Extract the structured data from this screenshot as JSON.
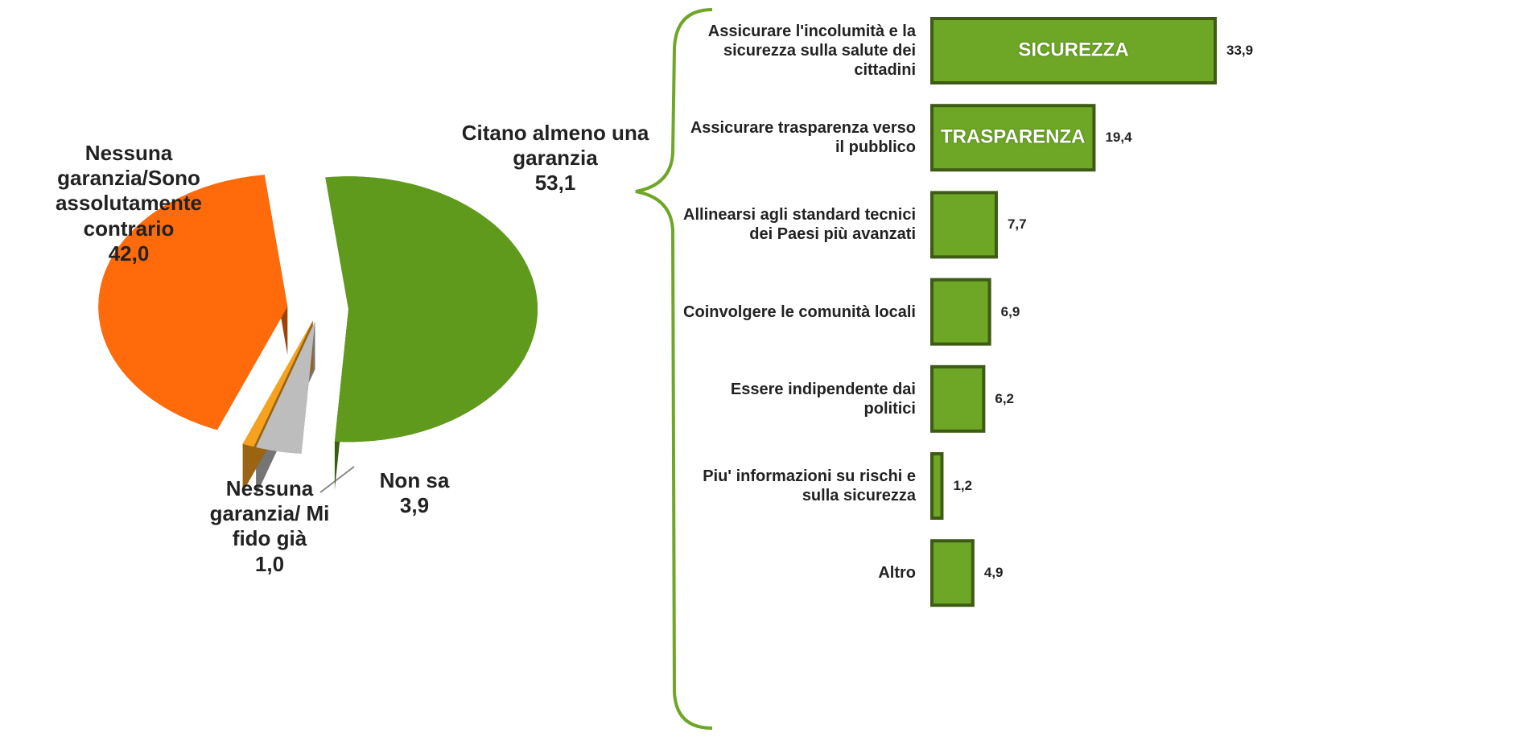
{
  "chart_data": [
    {
      "type": "pie",
      "categories": [
        "Citano almeno una garanzia",
        "Non sa",
        "Nessuna garanzia/ Mi fido già",
        "Nessuna garanzia/Sono assolutamente contrario"
      ],
      "values": [
        53.1,
        3.9,
        1.0,
        42.0
      ],
      "value_labels": [
        "53,1",
        "3,9",
        "1,0",
        "42,0"
      ],
      "colors": [
        "#5f9a1c",
        "#bdbdbd",
        "#f7a21e",
        "#ff6a0a"
      ]
    },
    {
      "type": "hbar",
      "categories": [
        "Assicurare l'incolumità e la sicurezza sulla salute dei cittadini",
        "Assicurare trasparenza verso il pubblico",
        "Allinearsi agli standard tecnici dei Paesi più avanzati",
        "Coinvolgere le comunità locali",
        "Essere indipendente dai politici",
        "Piu' informazioni su rischi e sulla sicurezza",
        "Altro"
      ],
      "values": [
        33.9,
        19.4,
        7.7,
        6.9,
        6.2,
        1.2,
        4.9
      ],
      "value_labels": [
        "33,9",
        "19,4",
        "7,7",
        "6,9",
        "6,2",
        "1,2",
        "4,9"
      ],
      "bar_labels": [
        "SICUREZZA",
        "TRASPARENZA",
        null,
        null,
        null,
        null,
        null
      ],
      "color": "#6ea626"
    }
  ]
}
